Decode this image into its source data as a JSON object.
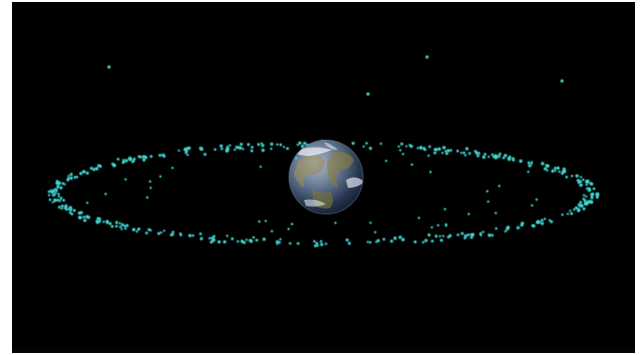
{
  "scene": {
    "subject": "earth-with-satellite-ring",
    "colors": {
      "background": "#000000",
      "dot": "#41d6d0",
      "dot_glow": "#2fbfbb",
      "ocean": "#2b3c5c",
      "land": "#6c6a4a",
      "cloud": "#dfe6ee"
    },
    "icons": [
      "earth-icon",
      "satellite-dot-icon"
    ]
  }
}
